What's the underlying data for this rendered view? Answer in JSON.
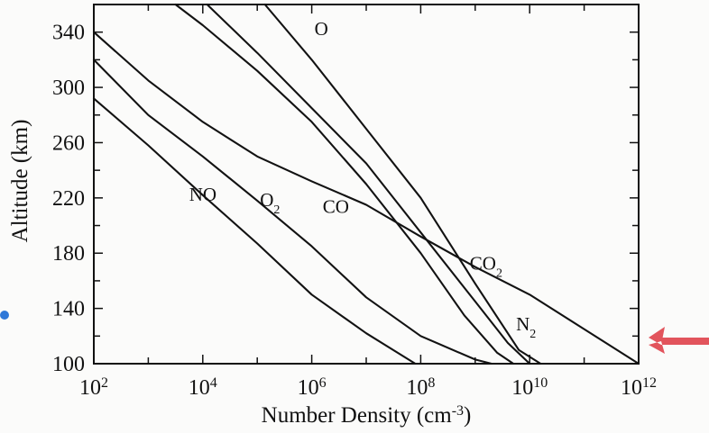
{
  "chart_data": {
    "type": "line",
    "title": "",
    "xlabel": "Number Density (cm-3)",
    "xlabel_main": "Number Density (cm",
    "xlabel_sup": "-3",
    "xlabel_close": ")",
    "ylabel": "Altitude (km)",
    "xscale": "log",
    "xlim_exp": [
      2,
      12
    ],
    "ylim": [
      100,
      360
    ],
    "grid": false,
    "x_ticks": [
      {
        "base": "10",
        "exp": "2"
      },
      {
        "base": "10",
        "exp": "4"
      },
      {
        "base": "10",
        "exp": "6"
      },
      {
        "base": "10",
        "exp": "8"
      },
      {
        "base": "10",
        "exp": "10"
      },
      {
        "base": "10",
        "exp": "12"
      }
    ],
    "y_ticks": [
      "100",
      "140",
      "180",
      "220",
      "260",
      "300",
      "340"
    ],
    "series": [
      {
        "name": "O",
        "label_base": "O",
        "label_sub": "",
        "label_at": [
          6.05,
          338
        ],
        "points": [
          [
            5.14,
            360
          ],
          [
            6.0,
            320
          ],
          [
            7.0,
            270
          ],
          [
            8.0,
            220
          ],
          [
            9.0,
            158
          ],
          [
            9.8,
            110
          ],
          [
            10.2,
            100
          ]
        ]
      },
      {
        "name": "N2",
        "label_base": "N",
        "label_sub": "2",
        "label_at": [
          9.75,
          124
        ],
        "points": [
          [
            4.08,
            360
          ],
          [
            5.0,
            325
          ],
          [
            6.0,
            285
          ],
          [
            7.0,
            245
          ],
          [
            8.0,
            195
          ],
          [
            9.0,
            145
          ],
          [
            9.6,
            115
          ],
          [
            10.0,
            100
          ]
        ]
      },
      {
        "name": "CO2",
        "label_base": "CO",
        "label_sub": "2",
        "label_at": [
          8.9,
          168
        ],
        "points": [
          [
            2.0,
            340
          ],
          [
            3.0,
            305
          ],
          [
            4.0,
            275
          ],
          [
            5.0,
            250
          ],
          [
            6.0,
            232
          ],
          [
            7.0,
            215
          ],
          [
            8.0,
            192
          ],
          [
            9.0,
            170
          ],
          [
            10.0,
            150
          ],
          [
            11.0,
            125
          ],
          [
            12.0,
            100
          ]
        ]
      },
      {
        "name": "CO",
        "label_base": "CO",
        "label_sub": "",
        "label_at": [
          6.2,
          209
        ],
        "points": [
          [
            3.5,
            360
          ],
          [
            4.0,
            345
          ],
          [
            5.0,
            312
          ],
          [
            6.0,
            275
          ],
          [
            7.0,
            230
          ],
          [
            8.0,
            180
          ],
          [
            8.8,
            135
          ],
          [
            9.4,
            108
          ],
          [
            9.7,
            100
          ]
        ]
      },
      {
        "name": "O2",
        "label_base": "O",
        "label_sub": "2",
        "label_at": [
          5.05,
          214
        ],
        "points": [
          [
            2.0,
            320
          ],
          [
            3.0,
            280
          ],
          [
            4.0,
            250
          ],
          [
            5.0,
            218
          ],
          [
            6.0,
            185
          ],
          [
            7.0,
            148
          ],
          [
            8.0,
            120
          ],
          [
            9.0,
            103
          ],
          [
            9.3,
            100
          ]
        ]
      },
      {
        "name": "NO",
        "label_base": "NO",
        "label_sub": "",
        "label_at": [
          3.75,
          218
        ],
        "points": [
          [
            2.0,
            292
          ],
          [
            3.0,
            258
          ],
          [
            4.0,
            222
          ],
          [
            5.0,
            187
          ],
          [
            6.0,
            150
          ],
          [
            7.0,
            122
          ],
          [
            7.9,
            100
          ]
        ]
      }
    ]
  }
}
